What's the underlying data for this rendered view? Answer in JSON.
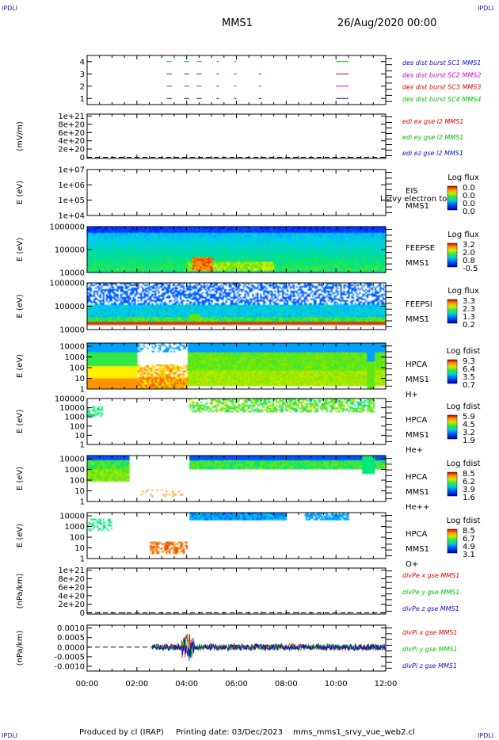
{
  "header": {
    "mission": "MMS1",
    "date": "26/Aug/2020 00:00"
  },
  "corners": {
    "top_left": "IPDLI",
    "top_right": "IPDLI",
    "bottom_left": "IPDLI",
    "bottom_right": "IPDLI"
  },
  "footer": {
    "produced": "Produced by cl (IRAP)",
    "printed": "Printing date: 03/Dec/2023",
    "script": "mms_mms1_srvy_vue_web2.cl"
  },
  "colors": {
    "blue": "#1010c8",
    "magenta": "#d000d0",
    "red": "#e00000",
    "green": "#00c000"
  },
  "chart_data": [
    {
      "id": "p1",
      "type": "line",
      "ylabel": "",
      "yticks": [
        "1",
        "2",
        "3",
        "4"
      ],
      "ytick_values": [
        1,
        2,
        3,
        4
      ],
      "ylim": [
        0.5,
        4.5
      ],
      "legend": [
        {
          "text": "des dist burst SC1 MMS1",
          "color": "#1010c8"
        },
        {
          "text": "des dist burst SC2 MMS2",
          "color": "#d000d0"
        },
        {
          "text": "des dist burst SC3 MMS3",
          "color": "#e00000"
        },
        {
          "text": "des dist burst SC4 MMS4",
          "color": "#00c000"
        }
      ],
      "series": [
        {
          "level": 4,
          "color": "#00c000",
          "intervals": [
            [
              3.2,
              3.4
            ],
            [
              3.9,
              4.1
            ],
            [
              4.4,
              4.6
            ],
            [
              5.2,
              5.3
            ],
            [
              5.9,
              6.0
            ],
            [
              10.0,
              10.5
            ]
          ]
        },
        {
          "level": 3,
          "color": "#e00000",
          "intervals": [
            [
              3.2,
              3.4
            ],
            [
              3.9,
              4.1
            ],
            [
              4.4,
              4.6
            ],
            [
              5.2,
              5.3
            ],
            [
              5.9,
              6.0
            ],
            [
              6.9,
              7.0
            ],
            [
              10.0,
              10.5
            ]
          ]
        },
        {
          "level": 2,
          "color": "#d000d0",
          "intervals": [
            [
              3.2,
              3.4
            ],
            [
              3.9,
              4.1
            ],
            [
              4.4,
              4.6
            ],
            [
              5.2,
              5.3
            ],
            [
              5.9,
              6.0
            ],
            [
              6.9,
              7.0
            ],
            [
              10.0,
              10.5
            ]
          ]
        },
        {
          "level": 1,
          "color": "#1010c8",
          "intervals": [
            [
              3.2,
              3.4
            ],
            [
              3.9,
              4.1
            ],
            [
              4.4,
              4.6
            ],
            [
              5.2,
              5.3
            ],
            [
              5.9,
              6.0
            ],
            [
              6.9,
              7.0
            ],
            [
              10.0,
              10.5
            ]
          ]
        }
      ]
    },
    {
      "id": "p2",
      "type": "line",
      "ylabel": "(mV/m)",
      "yticks": [
        "0",
        "2e+20",
        "4e+20",
        "6e+20",
        "8e+20",
        "1e+21"
      ],
      "ytick_values": [
        0,
        2,
        4,
        6,
        8,
        10
      ],
      "ylim": [
        -0.3,
        10.5
      ],
      "zero_line": true,
      "legend": [
        {
          "text": "edi ex gse l2 MMS1",
          "color": "#e00000"
        },
        {
          "text": "edi ey gse l2 MMS1",
          "color": "#00c000"
        },
        {
          "text": "edi ez gse l2 MMS1",
          "color": "#1010c8"
        }
      ]
    },
    {
      "id": "p3",
      "type": "heatmap",
      "ylabel": "E (eV)",
      "yticks": [
        "1e+04",
        "1e+05",
        "1e+06",
        "1e+07"
      ],
      "ytick_values": [
        4,
        5,
        6,
        7
      ],
      "ylim": [
        4,
        7
      ],
      "labels": [
        "EIS",
        "MMS1"
      ],
      "overlap_text": "l srvy electron to",
      "colorbar": {
        "title": "Log flux",
        "ticks": [
          "0.0",
          "0.0",
          "0.0",
          "0.0"
        ]
      },
      "empty": true
    },
    {
      "id": "p4",
      "type": "heatmap",
      "ylabel": "E (eV)",
      "yticks": [
        "10000",
        "100000",
        "1000000"
      ],
      "ytick_values": [
        4,
        5,
        6
      ],
      "ylim": [
        4,
        6
      ],
      "labels": [
        "FEEPSE",
        "MMS1"
      ],
      "colorbar": {
        "title": "Log flux",
        "ticks": [
          "3.2",
          "2.0",
          "0.8",
          "-0.5"
        ]
      },
      "pattern": "feeps_e"
    },
    {
      "id": "p5",
      "type": "heatmap",
      "ylabel": "E (eV)",
      "yticks": [
        "10000",
        "100000",
        "1000000"
      ],
      "ytick_values": [
        4,
        5,
        6
      ],
      "ylim": [
        4,
        6
      ],
      "labels": [
        "FEEPSI",
        "MMS1"
      ],
      "colorbar": {
        "title": "Log flux",
        "ticks": [
          "3.3",
          "2.3",
          "1.3",
          "0.2"
        ]
      },
      "pattern": "feeps_i"
    },
    {
      "id": "p6",
      "type": "heatmap",
      "ylabel": "E (eV)",
      "yticks": [
        "1",
        "10",
        "100",
        "1000",
        "10000"
      ],
      "ytick_values": [
        0,
        1,
        2,
        3,
        4
      ],
      "ylim": [
        0,
        4.3
      ],
      "labels": [
        "HPCA",
        "MMS1",
        "H+"
      ],
      "colorbar": {
        "title": "Log fdist",
        "ticks": [
          "9.3",
          "6.4",
          "3.5",
          "0.7"
        ]
      },
      "pattern": "hplus"
    },
    {
      "id": "p7",
      "type": "heatmap",
      "ylabel": "E (eV)",
      "yticks": [
        "1",
        "10",
        "100",
        "1000",
        "10000",
        "100000"
      ],
      "ytick_values": [
        0,
        1,
        2,
        3,
        4,
        5
      ],
      "ylim": [
        0,
        5
      ],
      "labels": [
        "HPCA",
        "MMS1",
        "He+"
      ],
      "colorbar": {
        "title": "Log fdist",
        "ticks": [
          "5.9",
          "4.5",
          "3.2",
          "1.9"
        ]
      },
      "pattern": "heplus"
    },
    {
      "id": "p8",
      "type": "heatmap",
      "ylabel": "E (eV)",
      "yticks": [
        "1",
        "10",
        "100",
        "1000",
        "10000"
      ],
      "ytick_values": [
        0,
        1,
        2,
        3,
        4
      ],
      "ylim": [
        0,
        4.3
      ],
      "labels": [
        "HPCA",
        "MMS1",
        "He++"
      ],
      "colorbar": {
        "title": "Log fdist",
        "ticks": [
          "8.5",
          "6.2",
          "3.9",
          "1.6"
        ]
      },
      "pattern": "hepp"
    },
    {
      "id": "p9",
      "type": "heatmap",
      "ylabel": "E (eV)",
      "yticks": [
        "1",
        "10",
        "100",
        "1000",
        "10000"
      ],
      "ytick_values": [
        0,
        1,
        2,
        3,
        4
      ],
      "ylim": [
        0,
        4.3
      ],
      "labels": [
        "HPCA",
        "MMS1",
        "O+"
      ],
      "colorbar": {
        "title": "Log fdist",
        "ticks": [
          "8.5",
          "6.7",
          "4.9",
          "3.1"
        ]
      },
      "pattern": "oplus"
    },
    {
      "id": "p10",
      "type": "line",
      "ylabel": "(nPa/km)",
      "yticks": [
        "0",
        "2e+20",
        "4e+20",
        "6e+20",
        "8e+20",
        "1e+21"
      ],
      "ytick_values": [
        0,
        2,
        4,
        6,
        8,
        10
      ],
      "ylim": [
        -0.3,
        10.5
      ],
      "zero_line": true,
      "legend": [
        {
          "text": "divPe x gse MMS1",
          "color": "#e00000"
        },
        {
          "text": "divPe y gse MMS1",
          "color": "#00c000"
        },
        {
          "text": "divPe z gse MMS1",
          "color": "#1010c8"
        }
      ]
    },
    {
      "id": "p11",
      "type": "line",
      "ylabel": "(nPa/km)",
      "yticks": [
        "-0.0010",
        "-0.0005",
        "0.0000",
        "0.0005",
        "0.0010"
      ],
      "ytick_values": [
        -0.001,
        -0.0005,
        0,
        0.0005,
        0.001
      ],
      "ylim": [
        -0.00125,
        0.00115
      ],
      "zero_line": true,
      "data_start_hour": 2.6,
      "legend": [
        {
          "text": "divPi x gse MMS1",
          "color": "#e00000"
        },
        {
          "text": "divPi y gse MMS1",
          "color": "#00c000"
        },
        {
          "text": "divPi z gse MMS1",
          "color": "#1010c8"
        }
      ]
    }
  ],
  "xaxis": {
    "ticks": [
      "00:00",
      "02:00",
      "04:00",
      "06:00",
      "08:00",
      "10:00",
      "12:00"
    ],
    "tick_hours": [
      0,
      2,
      4,
      6,
      8,
      10,
      12
    ],
    "range_hours": [
      0,
      12
    ]
  }
}
